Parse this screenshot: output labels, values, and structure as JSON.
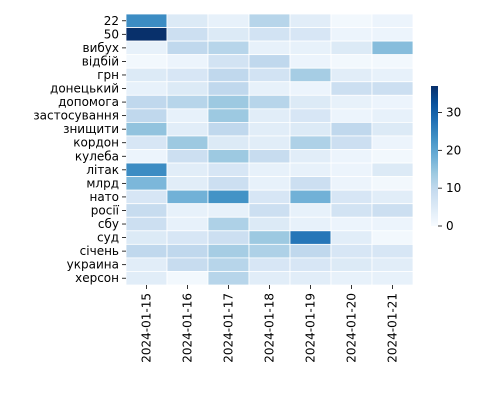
{
  "chart_data": {
    "type": "heatmap",
    "title": "",
    "xlabel": "",
    "ylabel": "",
    "x": [
      "2024-01-15",
      "2024-01-16",
      "2024-01-17",
      "2024-01-18",
      "2024-01-19",
      "2024-01-20",
      "2024-01-21"
    ],
    "y": [
      "22",
      "50",
      "вибух",
      "відбій",
      "грн",
      "донецький",
      "допомога",
      "застосування",
      "знищити",
      "кордон",
      "кулеба",
      "літак",
      "млрд",
      "нато",
      "росії",
      "сбу",
      "суд",
      "січень",
      "украина",
      "херсон"
    ],
    "values": [
      [
        24,
        5,
        3,
        11,
        4,
        1,
        2
      ],
      [
        37,
        8,
        5,
        7,
        6,
        2,
        2
      ],
      [
        3,
        10,
        11,
        3,
        3,
        5,
        16
      ],
      [
        1,
        2,
        7,
        10,
        2,
        1,
        1
      ],
      [
        5,
        6,
        10,
        7,
        13,
        4,
        3
      ],
      [
        3,
        5,
        10,
        3,
        2,
        8,
        8
      ],
      [
        10,
        11,
        14,
        11,
        5,
        3,
        2
      ],
      [
        10,
        3,
        14,
        4,
        6,
        2,
        3
      ],
      [
        15,
        4,
        10,
        4,
        5,
        10,
        5
      ],
      [
        6,
        14,
        5,
        4,
        12,
        8,
        2
      ],
      [
        2,
        8,
        14,
        9,
        4,
        2,
        1
      ],
      [
        24,
        4,
        6,
        3,
        3,
        2,
        5
      ],
      [
        17,
        4,
        8,
        3,
        8,
        2,
        1
      ],
      [
        6,
        18,
        23,
        6,
        18,
        6,
        4
      ],
      [
        9,
        3,
        3,
        8,
        3,
        7,
        8
      ],
      [
        8,
        3,
        12,
        5,
        3,
        2,
        2
      ],
      [
        5,
        6,
        8,
        14,
        27,
        4,
        1
      ],
      [
        10,
        10,
        13,
        12,
        10,
        6,
        6
      ],
      [
        4,
        9,
        11,
        6,
        6,
        5,
        4
      ],
      [
        4,
        1,
        11,
        4,
        4,
        3,
        3
      ]
    ],
    "colorbar": {
      "min": 0,
      "max": 37,
      "ticks": [
        0,
        10,
        20,
        30
      ]
    },
    "colormap": [
      "#f7fbff",
      "#deebf7",
      "#c6dbef",
      "#9ecae1",
      "#6baed6",
      "#4292c6",
      "#2171b5",
      "#08519c",
      "#08306b"
    ],
    "grid_lines": "white",
    "legend": "colorbar right"
  }
}
